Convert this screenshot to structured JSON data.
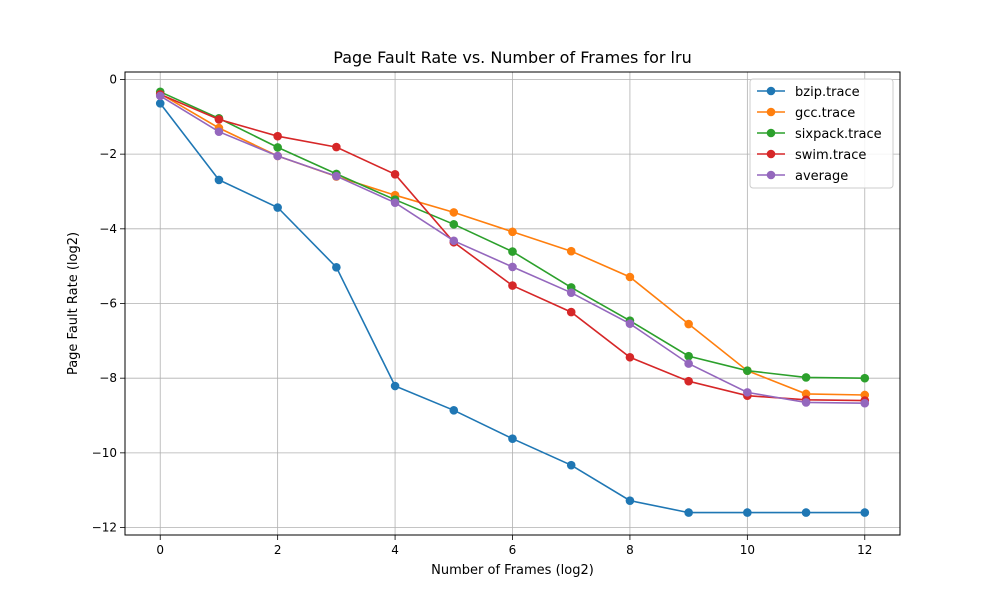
{
  "chart_data": {
    "type": "line",
    "title": "Page Fault Rate vs. Number of Frames for lru",
    "xlabel": "Number of Frames (log2)",
    "ylabel": "Page Fault Rate (log2)",
    "xlim": [
      -0.6,
      12.6
    ],
    "ylim": [
      -12.2,
      0.2
    ],
    "xticks": [
      0,
      2,
      4,
      6,
      8,
      10,
      12
    ],
    "yticks": [
      0,
      -2,
      -4,
      -6,
      -8,
      -10,
      -12
    ],
    "xtick_labels": [
      "0",
      "2",
      "4",
      "6",
      "8",
      "10",
      "12"
    ],
    "ytick_labels": [
      "0",
      "−2",
      "−4",
      "−6",
      "−8",
      "−10",
      "−12"
    ],
    "grid": true,
    "legend_position": "top-right",
    "x": [
      0,
      1,
      2,
      3,
      4,
      5,
      6,
      7,
      8,
      9,
      10,
      11,
      12
    ],
    "series": [
      {
        "name": "bzip.trace",
        "color": "#1f77b4",
        "values": [
          -0.64,
          -2.69,
          -3.43,
          -5.03,
          -8.21,
          -8.86,
          -9.62,
          -10.33,
          -11.28,
          -11.6,
          -11.6,
          -11.6,
          -11.6
        ]
      },
      {
        "name": "gcc.trace",
        "color": "#ff7f0e",
        "values": [
          -0.38,
          -1.3,
          -2.05,
          -2.6,
          -3.1,
          -3.56,
          -4.08,
          -4.6,
          -5.29,
          -6.55,
          -7.8,
          -8.42,
          -8.45
        ]
      },
      {
        "name": "sixpack.trace",
        "color": "#2ca02c",
        "values": [
          -0.33,
          -1.04,
          -1.82,
          -2.53,
          -3.22,
          -3.88,
          -4.61,
          -5.57,
          -6.46,
          -7.41,
          -7.8,
          -7.98,
          -8.0
        ]
      },
      {
        "name": "swim.trace",
        "color": "#d62728",
        "values": [
          -0.4,
          -1.07,
          -1.52,
          -1.81,
          -2.54,
          -4.36,
          -5.52,
          -6.23,
          -7.44,
          -8.08,
          -8.47,
          -8.58,
          -8.6
        ]
      },
      {
        "name": "average",
        "color": "#9467bd",
        "values": [
          -0.44,
          -1.4,
          -2.05,
          -2.59,
          -3.3,
          -4.32,
          -5.02,
          -5.71,
          -6.54,
          -7.61,
          -8.38,
          -8.65,
          -8.67
        ]
      }
    ]
  }
}
